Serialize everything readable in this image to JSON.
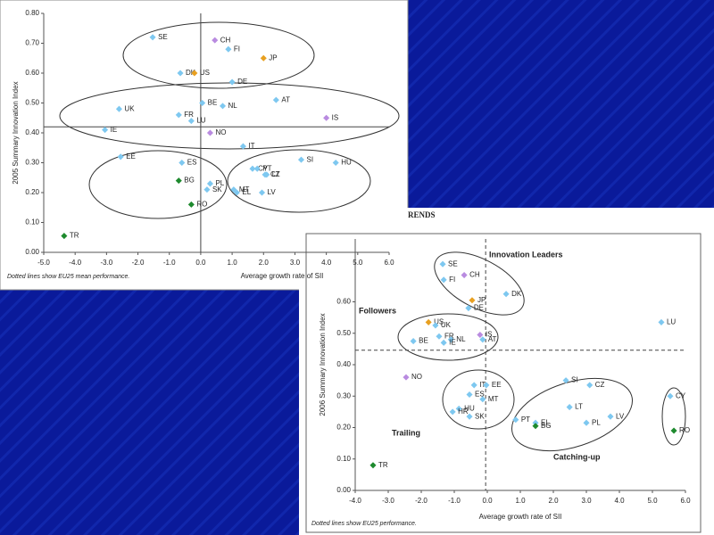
{
  "background_text": "RENDS",
  "chart_data": [
    {
      "type": "scatter",
      "xlabel": "Average growth rate of SII",
      "ylabel": "2005 Summary Innovation Index",
      "footnote": "Dotted lines show EU25 mean performance.",
      "xlim": [
        -5,
        6
      ],
      "ylim": [
        0,
        0.8
      ],
      "xticks": [
        {
          "value": -5,
          "label": "-5.0"
        },
        {
          "value": -4,
          "label": "-4.0"
        },
        {
          "value": -3,
          "label": "-3.0"
        },
        {
          "value": -2,
          "label": "-2.0"
        },
        {
          "value": -1,
          "label": "-1.0"
        },
        {
          "value": 0,
          "label": "0.0"
        },
        {
          "value": 1,
          "label": "1.0"
        },
        {
          "value": 2,
          "label": "2.0"
        },
        {
          "value": 3,
          "label": "3.0"
        },
        {
          "value": 4,
          "label": "4.0"
        },
        {
          "value": 5,
          "label": "5.0"
        },
        {
          "value": 6,
          "label": "6.0"
        }
      ],
      "yticks": [
        {
          "value": 0,
          "label": "0.00"
        },
        {
          "value": 0.1,
          "label": "0.10"
        },
        {
          "value": 0.2,
          "label": "0.20"
        },
        {
          "value": 0.3,
          "label": "0.30"
        },
        {
          "value": 0.4,
          "label": "0.40"
        },
        {
          "value": 0.5,
          "label": "0.50"
        },
        {
          "value": 0.6,
          "label": "0.60"
        },
        {
          "value": 0.7,
          "label": "0.70"
        },
        {
          "value": 0.8,
          "label": "0.80"
        }
      ],
      "reference_lines": {
        "x": 0,
        "y": 0.42,
        "style": "solid"
      },
      "labels": [
        "SE",
        "CH",
        "FI",
        "JP",
        "DK",
        "US",
        "DE",
        "AT",
        "BE",
        "NL",
        "UK",
        "FR",
        "IS",
        "LU",
        "IE",
        "NO",
        "IT",
        "EE",
        "SI",
        "HU",
        "ES",
        "CY",
        "PT",
        "CZ",
        "LT",
        "PL",
        "BG",
        "MT",
        "SK",
        "LV",
        "EL",
        "RO",
        "TR"
      ],
      "x": [
        -1.53,
        0.45,
        0.88,
        2.0,
        -0.65,
        -0.2,
        1.0,
        2.4,
        0.05,
        0.7,
        -2.6,
        -0.7,
        4.0,
        -0.3,
        -3.05,
        0.3,
        1.35,
        -2.55,
        3.2,
        4.3,
        -0.6,
        1.65,
        1.8,
        2.05,
        2.1,
        0.3,
        -0.7,
        1.05,
        0.2,
        1.95,
        1.15,
        -0.3,
        -4.35
      ],
      "y": [
        0.72,
        0.71,
        0.68,
        0.65,
        0.6,
        0.6,
        0.57,
        0.51,
        0.5,
        0.49,
        0.48,
        0.46,
        0.45,
        0.44,
        0.41,
        0.4,
        0.355,
        0.32,
        0.31,
        0.3,
        0.3,
        0.28,
        0.28,
        0.26,
        0.26,
        0.23,
        0.24,
        0.21,
        0.21,
        0.2,
        0.2,
        0.16,
        0.055
      ],
      "colors": [
        "#7ec8f0",
        "#b98be0",
        "#7ec8f0",
        "#e8a020",
        "#7ec8f0",
        "#e8a020",
        "#7ec8f0",
        "#7ec8f0",
        "#7ec8f0",
        "#7ec8f0",
        "#7ec8f0",
        "#7ec8f0",
        "#b98be0",
        "#7ec8f0",
        "#7ec8f0",
        "#b98be0",
        "#7ec8f0",
        "#7ec8f0",
        "#7ec8f0",
        "#7ec8f0",
        "#7ec8f0",
        "#7ec8f0",
        "#7ec8f0",
        "#7ec8f0",
        "#7ec8f0",
        "#7ec8f0",
        "#1e8a2e",
        "#7ec8f0",
        "#7ec8f0",
        "#7ec8f0",
        "#7ec8f0",
        "#1e8a2e",
        "#1e8a2e"
      ]
    },
    {
      "type": "scatter",
      "xlabel": "Average growth rate of SII",
      "ylabel": "2006 Summary Innovation Index",
      "footnote": "Dotted lines show EU25 performance.",
      "annotations": [
        "Innovation Leaders",
        "Followers",
        "Trailing",
        "Catching-up"
      ],
      "xlim": [
        -4,
        6
      ],
      "ylim": [
        0,
        0.8
      ],
      "xticks": [
        {
          "value": -4,
          "label": "-4.0"
        },
        {
          "value": -3,
          "label": "-3.0"
        },
        {
          "value": -2,
          "label": "-2.0"
        },
        {
          "value": -1,
          "label": "-1.0"
        },
        {
          "value": 0,
          "label": "0.0"
        },
        {
          "value": 1,
          "label": "1.0"
        },
        {
          "value": 2,
          "label": "2.0"
        },
        {
          "value": 3,
          "label": "3.0"
        },
        {
          "value": 4,
          "label": "4.0"
        },
        {
          "value": 5,
          "label": "5.0"
        },
        {
          "value": 6,
          "label": "6.0"
        }
      ],
      "yticks": [
        {
          "value": 0,
          "label": "0.00"
        },
        {
          "value": 0.1,
          "label": "0.10"
        },
        {
          "value": 0.2,
          "label": "0.20"
        },
        {
          "value": 0.3,
          "label": "0.30"
        },
        {
          "value": 0.4,
          "label": "0.40"
        },
        {
          "value": 0.5,
          "label": "0.50"
        },
        {
          "value": 0.6,
          "label": "0.60"
        }
      ],
      "reference_lines": {
        "x": -0.05,
        "y": 0.446,
        "style": "dashed"
      },
      "labels": [
        "SE",
        "CH",
        "FI",
        "DK",
        "JP",
        "DE",
        "US",
        "UK",
        "LU",
        "FR",
        "IS",
        "NL",
        "AT",
        "BE",
        "IE",
        "NO",
        "IT",
        "EE",
        "SI",
        "CZ",
        "ES",
        "MT",
        "LT",
        "HU",
        "HR",
        "SK",
        "CY",
        "LV",
        "PT",
        "PL",
        "EL",
        "BG",
        "RO",
        "TR"
      ],
      "x": [
        -1.35,
        -0.7,
        -1.32,
        0.57,
        -0.46,
        -0.57,
        -1.78,
        -1.57,
        5.27,
        -1.46,
        -0.22,
        -1.1,
        -0.14,
        -2.24,
        -1.32,
        -2.46,
        -0.4,
        -0.03,
        2.38,
        3.1,
        -0.54,
        -0.14,
        2.49,
        -0.86,
        -1.05,
        -0.54,
        5.54,
        3.73,
        0.86,
        3.0,
        1.46,
        1.46,
        5.65,
        -3.46
      ],
      "y": [
        0.72,
        0.685,
        0.67,
        0.625,
        0.605,
        0.58,
        0.535,
        0.525,
        0.535,
        0.49,
        0.495,
        0.48,
        0.48,
        0.475,
        0.47,
        0.36,
        0.335,
        0.335,
        0.35,
        0.335,
        0.305,
        0.29,
        0.265,
        0.26,
        0.25,
        0.235,
        0.3,
        0.235,
        0.225,
        0.215,
        0.215,
        0.205,
        0.19,
        0.08
      ],
      "colors": [
        "#7ec8f0",
        "#b98be0",
        "#7ec8f0",
        "#7ec8f0",
        "#e8a020",
        "#7ec8f0",
        "#e8a020",
        "#7ec8f0",
        "#7ec8f0",
        "#7ec8f0",
        "#b98be0",
        "#7ec8f0",
        "#7ec8f0",
        "#7ec8f0",
        "#7ec8f0",
        "#b98be0",
        "#7ec8f0",
        "#7ec8f0",
        "#7ec8f0",
        "#7ec8f0",
        "#7ec8f0",
        "#7ec8f0",
        "#7ec8f0",
        "#7ec8f0",
        "#7ec8f0",
        "#7ec8f0",
        "#7ec8f0",
        "#7ec8f0",
        "#7ec8f0",
        "#7ec8f0",
        "#7ec8f0",
        "#1e8a2e",
        "#1e8a2e",
        "#1e8a2e"
      ]
    }
  ]
}
